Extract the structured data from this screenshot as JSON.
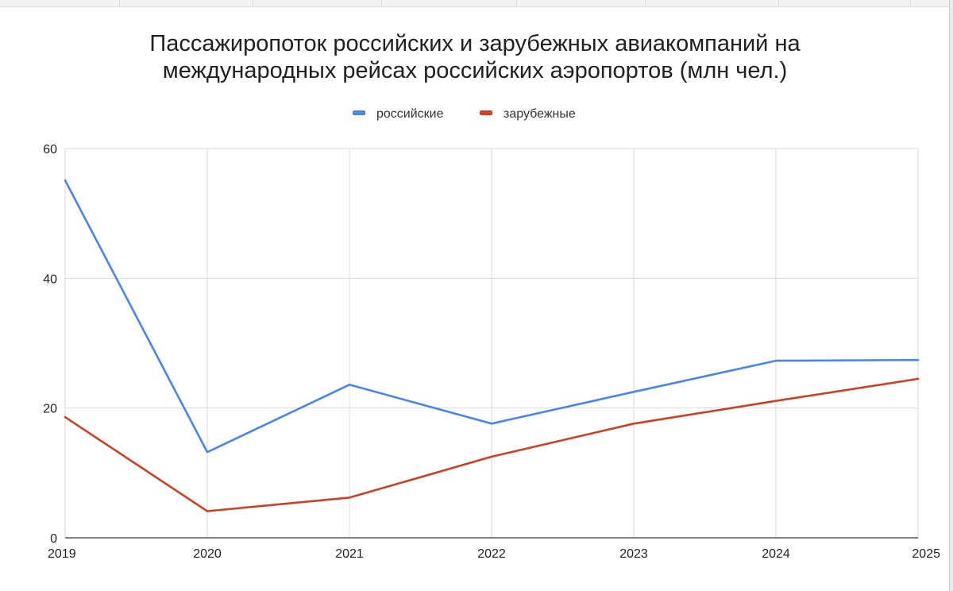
{
  "chart_data": {
    "type": "line",
    "title": "Пассажиропоток российских и зарубежных авиакомпаний на международных рейсах российских аэропортов (млн чел.)",
    "x": [
      "2019",
      "2020",
      "2021",
      "2022",
      "2023",
      "2024",
      "2025"
    ],
    "series": [
      {
        "name": "российские",
        "color": "#4a86e8",
        "values": [
          55.1,
          13.2,
          23.6,
          17.6,
          22.5,
          27.3,
          27.4
        ]
      },
      {
        "name": "зарубежные",
        "color": "#cc4125",
        "values": [
          18.6,
          4.1,
          6.2,
          12.5,
          17.6,
          21.1,
          24.5
        ]
      }
    ],
    "ylim": [
      0,
      60
    ],
    "yticks": [
      "0",
      "20",
      "40",
      "60"
    ],
    "xlabel": "",
    "ylabel": "",
    "grid": true,
    "legend_position": "top"
  }
}
